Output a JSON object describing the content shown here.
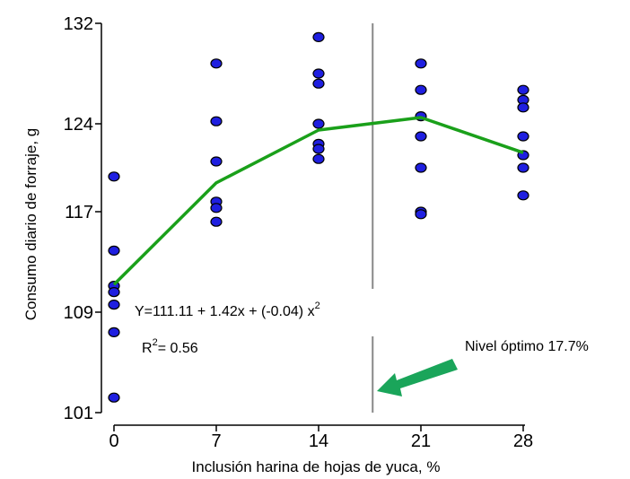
{
  "chart_data": {
    "type": "scatter",
    "title": "",
    "xlabel": "Inclusión harina de hojas de yuca, %",
    "ylabel": "Consumo diario de forraje, g",
    "xlim": [
      0,
      28
    ],
    "ylim": [
      101,
      132
    ],
    "x_ticks": [
      0,
      7,
      14,
      21,
      28
    ],
    "y_ticks": [
      101,
      109,
      117,
      124,
      132
    ],
    "x_tick_labels": [
      "0",
      "7",
      "14",
      "21",
      "28"
    ],
    "y_tick_labels": [
      "101",
      "109",
      "117",
      "124",
      "132"
    ],
    "grid": false,
    "points_color": "#1f1fe0",
    "points": [
      {
        "x": 0,
        "y": 119.8
      },
      {
        "x": 0,
        "y": 113.9
      },
      {
        "x": 0,
        "y": 111.1
      },
      {
        "x": 0,
        "y": 110.6
      },
      {
        "x": 0,
        "y": 109.6
      },
      {
        "x": 0,
        "y": 107.4
      },
      {
        "x": 0,
        "y": 102.2
      },
      {
        "x": 7,
        "y": 128.8
      },
      {
        "x": 7,
        "y": 124.2
      },
      {
        "x": 7,
        "y": 121.0
      },
      {
        "x": 7,
        "y": 117.8
      },
      {
        "x": 7,
        "y": 117.3
      },
      {
        "x": 7,
        "y": 116.2
      },
      {
        "x": 14,
        "y": 130.9
      },
      {
        "x": 14,
        "y": 128.0
      },
      {
        "x": 14,
        "y": 127.2
      },
      {
        "x": 14,
        "y": 124.0
      },
      {
        "x": 14,
        "y": 122.4
      },
      {
        "x": 14,
        "y": 122.0
      },
      {
        "x": 14,
        "y": 121.2
      },
      {
        "x": 21,
        "y": 128.8
      },
      {
        "x": 21,
        "y": 126.7
      },
      {
        "x": 21,
        "y": 124.6
      },
      {
        "x": 21,
        "y": 123.0
      },
      {
        "x": 21,
        "y": 120.5
      },
      {
        "x": 21,
        "y": 117.0
      },
      {
        "x": 21,
        "y": 116.8
      },
      {
        "x": 28,
        "y": 126.7
      },
      {
        "x": 28,
        "y": 125.9
      },
      {
        "x": 28,
        "y": 125.3
      },
      {
        "x": 28,
        "y": 123.0
      },
      {
        "x": 28,
        "y": 121.5
      },
      {
        "x": 28,
        "y": 120.5
      },
      {
        "x": 28,
        "y": 118.3
      }
    ],
    "fit_line": {
      "color": "#1aa01a",
      "x": [
        0,
        7,
        14,
        21,
        28
      ],
      "y": [
        111.2,
        119.3,
        123.5,
        124.5,
        121.7
      ]
    },
    "optimum_line": {
      "x": 17.7,
      "color": "#888888"
    },
    "arrow_color": "#1aa55a",
    "equation": "Y=111.11 + 1.42x + (-0.04) x",
    "equation_superscript": "2",
    "r2_prefix": "R",
    "r2_superscript": "2",
    "r2_value": "= 0.56",
    "optimum_label": "Nivel óptimo 17.7%"
  }
}
